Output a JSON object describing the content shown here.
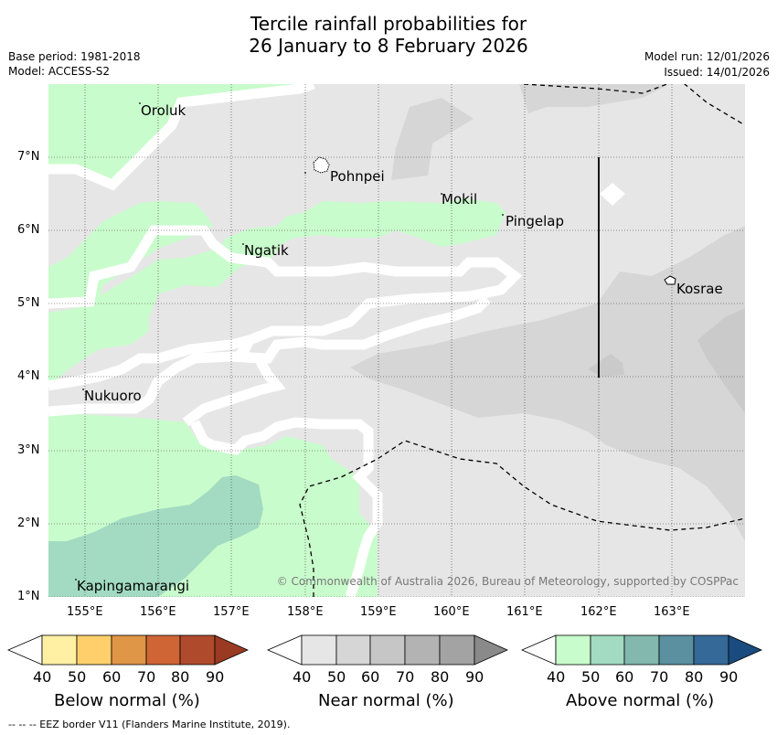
{
  "title_line1": "Tercile rainfall probabilities for",
  "title_line2": "26 January to 8 February 2026",
  "base_period": "Base period: 1981-2018",
  "model": "Model: ACCESS-S2",
  "model_run": "Model run: 12/01/2026",
  "issued": "Issued: 14/01/2026",
  "copyright": "© Commonwealth of Australia 2026, Bureau of Meteorology, supported by COSPPac",
  "footer": "--  --  -- EEZ border V11 (Flanders Marine Institute, 2019).",
  "lon_labels": [
    "155°E",
    "156°E",
    "157°E",
    "158°E",
    "159°E",
    "160°E",
    "161°E",
    "162°E",
    "163°E"
  ],
  "lat_labels": [
    "7°N",
    "6°N",
    "5°N",
    "4°N",
    "3°N",
    "2°N",
    "1°N"
  ],
  "places": [
    {
      "name": "Oroluk"
    },
    {
      "name": "Pohnpei"
    },
    {
      "name": "Mokil"
    },
    {
      "name": "Pingelap"
    },
    {
      "name": "Ngatik"
    },
    {
      "name": "Kosrae"
    },
    {
      "name": "Nukuoro"
    },
    {
      "name": "Kapingamarangi"
    }
  ],
  "colorbars": [
    {
      "title": "Below normal (%)",
      "ticks": [
        "40",
        "50",
        "60",
        "70",
        "80",
        "90"
      ],
      "colors": [
        "#fff0a3",
        "#fecf6a",
        "#e09647",
        "#cf6435",
        "#b04a2c",
        "#9a3a22"
      ]
    },
    {
      "title": "Near normal (%)",
      "ticks": [
        "40",
        "50",
        "60",
        "70",
        "80",
        "90"
      ],
      "colors": [
        "#e6e6e6",
        "#d6d6d6",
        "#c6c6c6",
        "#b3b3b3",
        "#a3a3a3",
        "#8a8a8a"
      ]
    },
    {
      "title": "Above normal (%)",
      "ticks": [
        "40",
        "50",
        "60",
        "70",
        "80",
        "90"
      ],
      "colors": [
        "#c9fccc",
        "#a2dbc1",
        "#82b8ae",
        "#5a90a0",
        "#356997",
        "#1a4b7e"
      ]
    }
  ]
}
